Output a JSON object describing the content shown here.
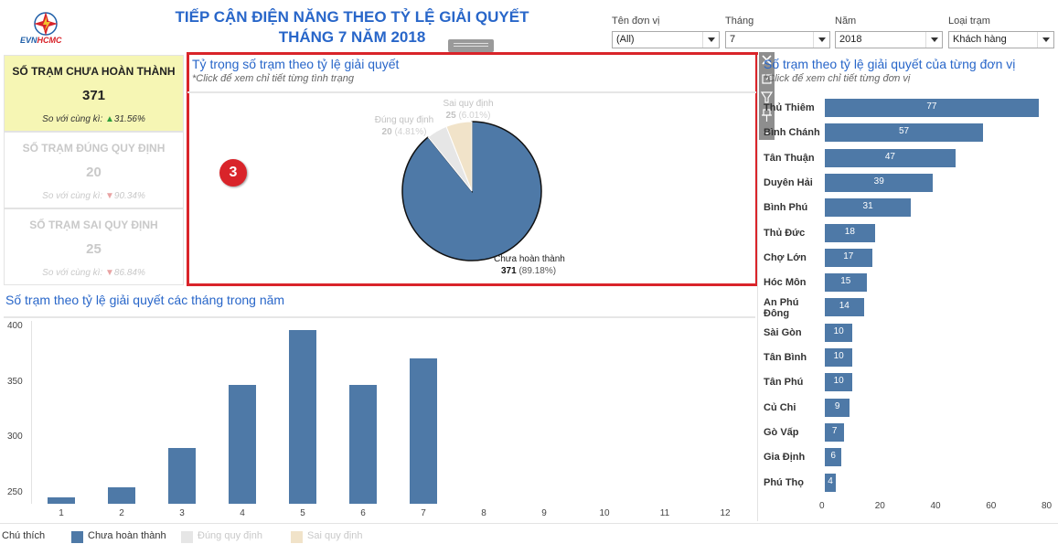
{
  "header": {
    "logo_text_a": "EVN",
    "logo_text_b": "HCMC",
    "title_line1": "TIẾP CẬN ĐIỆN NĂNG THEO TỶ LỆ GIẢI QUYẾT",
    "title_line2": "THÁNG 7 NĂM 2018"
  },
  "filters": [
    {
      "label": "Tên đơn vị",
      "value": "(All)"
    },
    {
      "label": "Tháng",
      "value": "7"
    },
    {
      "label": "Năm",
      "value": "2018"
    },
    {
      "label": "Loại trạm",
      "value": "Khách hàng"
    }
  ],
  "kpis": [
    {
      "title": "SỐ TRẠM CHƯA HOÀN THÀNH",
      "value": "371",
      "compare_label": "So với cùng kì:",
      "arrow": "▲",
      "pct": "31.56%"
    },
    {
      "title": "SỐ TRẠM ĐÚNG QUY ĐỊNH",
      "value": "20",
      "compare_label": "So với cùng kì:",
      "arrow": "▼",
      "pct": "90.34%"
    },
    {
      "title": "SỐ TRẠM SAI QUY ĐỊNH",
      "value": "25",
      "compare_label": "So với cùng kì:",
      "arrow": "▼",
      "pct": "86.84%"
    }
  ],
  "pie_panel": {
    "title": "Tỷ trọng số trạm theo tỷ lệ giải quyết",
    "subtitle": "*Click để xem chỉ tiết từng tình trạng",
    "badge": "3"
  },
  "right_panel": {
    "title": "Số trạm theo tỷ lệ giải quyết của từng đơn vị",
    "subtitle": "*Click để xem chỉ tiết từng đơn vị"
  },
  "bottom_panel": {
    "title": "Số trạm theo tỷ lệ giải quyết các tháng trong năm"
  },
  "legend": {
    "title": "Chú thích",
    "items": [
      "Chưa hoàn thành",
      "Đúng quy định",
      "Sai quy định"
    ]
  },
  "colors": {
    "primary": "#4e79a7",
    "dung": "#e6e6e6",
    "sai": "#f1e3c9",
    "highlight_border": "#d9242a",
    "title_blue": "#2866c9",
    "kpi_highlight": "#f6f6b4"
  },
  "icons": [
    "close-icon",
    "export-icon",
    "filter-icon",
    "pin-icon",
    "more-icon",
    "drag-handle-icon"
  ],
  "chart_data": [
    {
      "type": "pie",
      "categories": [
        "Chưa hoàn thành",
        "Đúng quy định",
        "Sai quy định"
      ],
      "values": [
        371,
        20,
        25
      ],
      "value_labels": [
        "371",
        "20",
        "25"
      ],
      "percent_labels": [
        "(89.18%)",
        "(4.81%)",
        "(6.01%)"
      ]
    },
    {
      "type": "bar",
      "categories": [
        "Thủ Thiêm",
        "Bình Chánh",
        "Tân Thuận",
        "Duyên Hải",
        "Bình Phú",
        "Thủ Đức",
        "Chợ Lớn",
        "Hóc Môn",
        "An Phú Đông",
        "Sài Gòn",
        "Tân Bình",
        "Tân Phú",
        "Củ Chi",
        "Gò Vấp",
        "Gia Định",
        "Phú Thọ"
      ],
      "values": [
        77,
        57,
        47,
        39,
        31,
        18,
        17,
        15,
        14,
        10,
        10,
        10,
        9,
        7,
        6,
        4
      ],
      "x_ticks": [
        0,
        20,
        40,
        60,
        80
      ],
      "xlim": [
        0,
        80
      ]
    },
    {
      "type": "bar",
      "categories": [
        "1",
        "2",
        "3",
        "4",
        "5",
        "6",
        "7",
        "8",
        "9",
        "10",
        "11",
        "12"
      ],
      "values": [
        246,
        255,
        290,
        347,
        397,
        347,
        371,
        null,
        null,
        null,
        null,
        null
      ],
      "y_ticks": [
        250,
        300,
        350,
        400
      ],
      "ylim": [
        240,
        405
      ]
    }
  ]
}
